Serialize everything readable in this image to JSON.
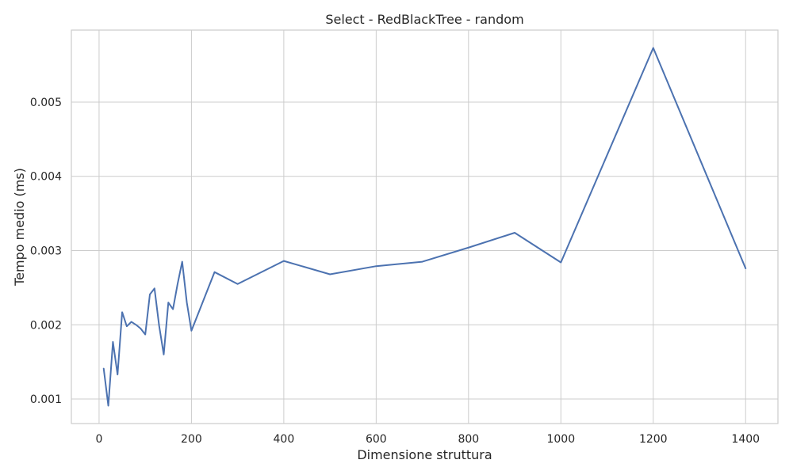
{
  "chart_data": {
    "type": "line",
    "title": "Select - RedBlackTree - random",
    "xlabel": "Dimensione struttura",
    "ylabel": "Tempo medio (ms)",
    "xlim": [
      -60,
      1470
    ],
    "ylim": [
      0.00067,
      0.00597
    ],
    "xticks": [
      0,
      200,
      400,
      600,
      800,
      1000,
      1200,
      1400
    ],
    "xtick_labels": [
      "0",
      "200",
      "400",
      "600",
      "800",
      "1000",
      "1200",
      "1400"
    ],
    "yticks": [
      0.001,
      0.002,
      0.003,
      0.004,
      0.005
    ],
    "ytick_labels": [
      "0.001",
      "0.002",
      "0.003",
      "0.004",
      "0.005"
    ],
    "grid": true,
    "legend": "none",
    "colors": {
      "line": "#4c72b0",
      "grid": "#cccccc",
      "text": "#262626"
    },
    "series": [
      {
        "x": [
          10,
          20,
          30,
          40,
          50,
          60,
          70,
          80,
          90,
          100,
          110,
          120,
          130,
          140,
          150,
          160,
          170,
          180,
          190,
          200,
          250,
          300,
          400,
          500,
          600,
          700,
          800,
          900,
          1000,
          1200,
          1400
        ],
        "y": [
          0.00141,
          0.00091,
          0.00177,
          0.00133,
          0.00217,
          0.00198,
          0.00204,
          0.002,
          0.00195,
          0.00187,
          0.00241,
          0.00249,
          0.00199,
          0.0016,
          0.0023,
          0.00221,
          0.00255,
          0.00285,
          0.0023,
          0.00192,
          0.00271,
          0.00255,
          0.00286,
          0.00268,
          0.00279,
          0.00285,
          0.00304,
          0.00324,
          0.00284,
          0.00573,
          0.00276
        ]
      }
    ]
  }
}
